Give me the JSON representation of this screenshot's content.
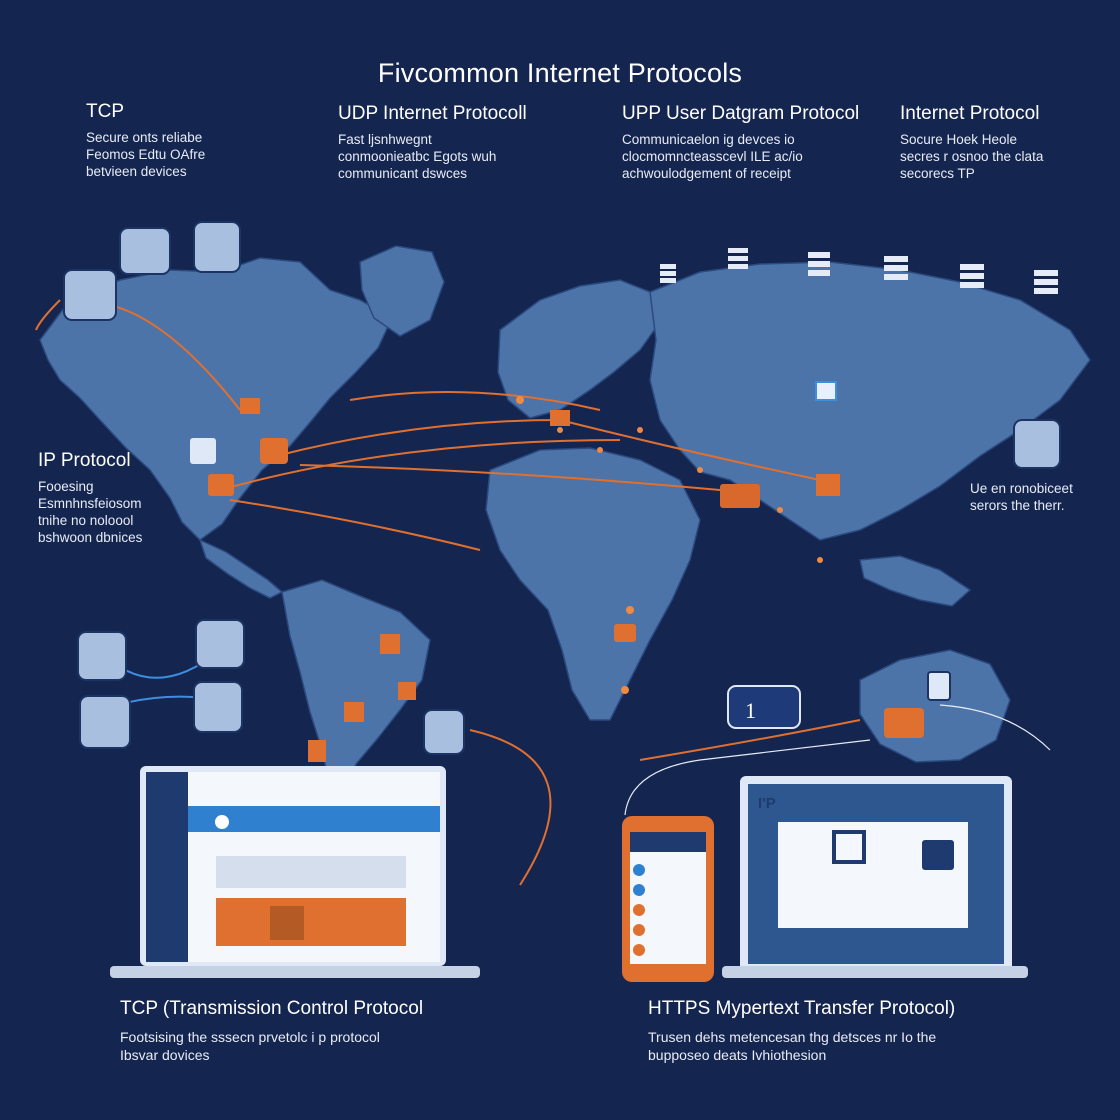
{
  "title": "Fivcommon Internet Protocols",
  "top_blocks": [
    {
      "heading": "TCP",
      "lines": [
        "Secure  onts  reliabe",
        "Feomos  Edtu  OAfre",
        "betvieen devices"
      ]
    },
    {
      "heading": "UDP Internet Protocoll",
      "lines": [
        "Fast  ljsnhwegnt",
        "conmoonieatbc Egots  wuh",
        "communicant  dswces"
      ]
    },
    {
      "heading": "UPP User Datgram Protocol",
      "lines": [
        "Communicaelon  ig  devces  io",
        "clocmomncteasscevl  ILE  ac/io",
        "achwoulodgement  of  receipt"
      ]
    },
    {
      "heading": "Internet Protocol",
      "lines": [
        "Socure  Hoek  Heole",
        "secres  r  osnoo  the  clata",
        "secorecs  TP"
      ]
    }
  ],
  "side_left": {
    "heading": "IP Protocol",
    "lines": [
      "Fooesing",
      "Esmnhnsfeiosom",
      "tnihe  no  noloool",
      "bshwoon  dbnices"
    ]
  },
  "side_right": {
    "lines": [
      "Ue  en  ronobiceet",
      "serors  the  therr."
    ]
  },
  "bottom_left": {
    "heading": "TCP (Transmission Control Protocol",
    "lines": [
      "Footsising  the  sssecn  prvetolc  i  p  protocol",
      "Ibsvar  dovices"
    ]
  },
  "bottom_right": {
    "heading": "HTTPS Mypertext Transfer Protocol)",
    "lines": [
      "Trusen  dehs  metencesan  thg  detsces  nr  Io  the",
      "bupposeo  deats  Ivhiothesion"
    ]
  },
  "labels": {
    "ip_screen": "I'P",
    "map_badge": "1"
  },
  "colors": {
    "background": "#142550",
    "land": "#4d74a8",
    "accent": "#e07030",
    "screen": "#2e5790",
    "device": "#b9cbe6"
  },
  "icons": [
    "server-icon",
    "lock-icon",
    "mail-icon",
    "phone-icon",
    "laptop-icon",
    "globe-map"
  ]
}
